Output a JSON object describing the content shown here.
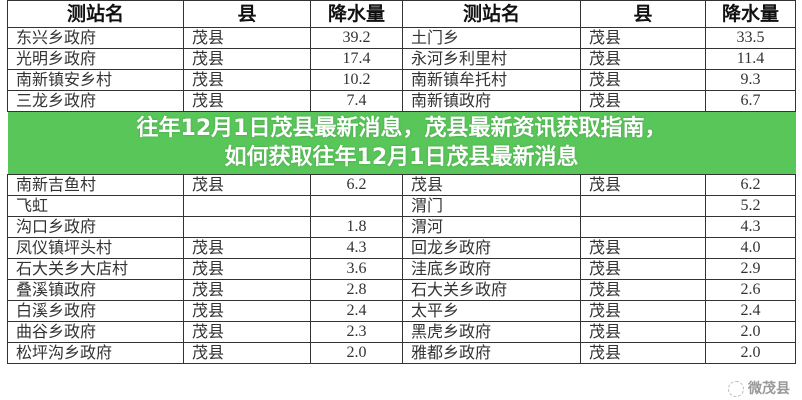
{
  "headers": [
    "测站名",
    "县",
    "降水量",
    "测站名",
    "县",
    "降水量"
  ],
  "rows": [
    [
      "东兴乡政府",
      "茂县",
      "39.2",
      "土门乡",
      "茂县",
      "33.5"
    ],
    [
      "光明乡政府",
      "茂县",
      "17.4",
      "永河乡利里村",
      "茂县",
      "11.4"
    ],
    [
      "南新镇安乡村",
      "茂县",
      "10.2",
      "南新镇牟托村",
      "茂县",
      "9.3"
    ],
    [
      "三龙乡政府",
      "茂县",
      "7.4",
      "南新镇政府",
      "茂县",
      "6.7"
    ],
    [
      "南新吉鱼村",
      "茂县",
      "6.2",
      "茂县",
      "茂县",
      "6.2"
    ],
    [
      "飞虹",
      "",
      "",
      "渭门",
      "",
      "5.2"
    ],
    [
      "沟口乡政府",
      "",
      "1.8",
      "渭河",
      "",
      "4.3"
    ],
    [
      "凤仪镇坪头村",
      "茂县",
      "4.3",
      "回龙乡政府",
      "茂县",
      "4.0"
    ],
    [
      "石大关乡大店村",
      "茂县",
      "3.6",
      "洼底乡政府",
      "茂县",
      "2.9"
    ],
    [
      "叠溪镇政府",
      "茂县",
      "2.8",
      "石大关乡政府",
      "茂县",
      "2.6"
    ],
    [
      "白溪乡政府",
      "茂县",
      "2.4",
      "太平乡",
      "茂县",
      "2.4"
    ],
    [
      "曲谷乡政府",
      "茂县",
      "2.3",
      "黑虎乡政府",
      "茂县",
      "2.0"
    ],
    [
      "松坪沟乡政府",
      "茂县",
      "2.0",
      "雅都乡政府",
      "茂县",
      "2.0"
    ]
  ],
  "banner": {
    "line1": "往年12月1日茂县最新消息，茂县最新资讯获取指南，",
    "line2": "如何获取往年12月1日茂县最新消息"
  },
  "watermark": "微茂县"
}
